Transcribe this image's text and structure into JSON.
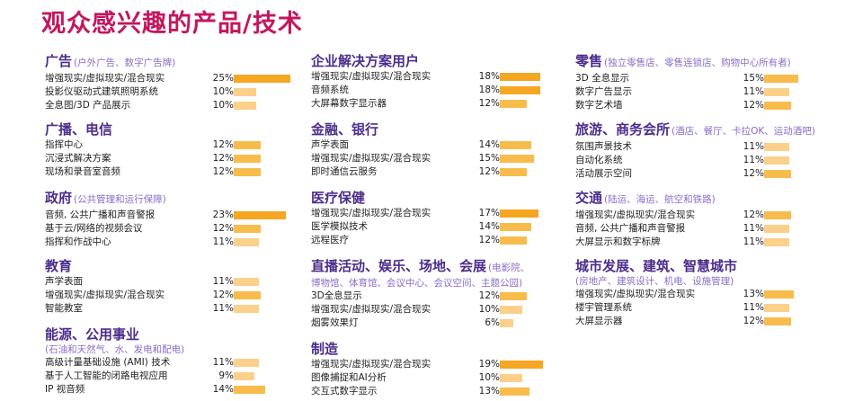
{
  "title": "观众感兴趣的产品/技术",
  "colors": {
    "title": "#c3175e",
    "section": "#4b2d8c",
    "subtitle": "#8a6cc8",
    "bar_high": "#f5a623",
    "bar_mid": "#f8bc4c",
    "bar_low": "#fad08a"
  },
  "chart_data": {
    "type": "bar",
    "orientation": "horizontal",
    "unit": "%",
    "columns": [
      [
        {
          "title": "广告",
          "subtitle": "(户外广告、数字广告牌)",
          "items": [
            {
              "label": "增强现实/虚拟现实/混合现实",
              "value": 25,
              "display": "25%"
            },
            {
              "label": "投影仪驱动式建筑照明系统",
              "value": 10,
              "display": "10%"
            },
            {
              "label": "全息图/3D 产品展示",
              "value": 10,
              "display": "10%"
            }
          ]
        },
        {
          "title": "广播、电信",
          "subtitle": "",
          "items": [
            {
              "label": "指挥中心",
              "value": 12,
              "display": "12%"
            },
            {
              "label": "沉浸式解决方案",
              "value": 12,
              "display": "12%"
            },
            {
              "label": "现场和录音室音频",
              "value": 12,
              "display": "12%"
            }
          ]
        },
        {
          "title": "政府",
          "subtitle": "(公共管理和运行保障)",
          "items": [
            {
              "label": "音频, 公共广播和声音警报",
              "value": 23,
              "display": "23%"
            },
            {
              "label": "基于云/网络的视频会议",
              "value": 12,
              "display": "12%"
            },
            {
              "label": "指挥和作战中心",
              "value": 11,
              "display": "11%"
            }
          ]
        },
        {
          "title": "教育",
          "subtitle": "",
          "items": [
            {
              "label": "声学表面",
              "value": 11,
              "display": "11%"
            },
            {
              "label": "增强现实/虚拟现实/混合现实",
              "value": 12,
              "display": "12%"
            },
            {
              "label": "智能教室",
              "value": 11,
              "display": "11%"
            }
          ]
        },
        {
          "title": "能源、公用事业",
          "subtitle_line": "(石油和天然气、水、发电和配电)",
          "items": [
            {
              "label": "高级计量基础设施 (AMI) 技术",
              "value": 11,
              "display": "11%"
            },
            {
              "label": "基于人工智能的闭路电视应用",
              "value": 9,
              "display": "9%"
            },
            {
              "label": "IP 视音频",
              "value": 14,
              "display": "14%"
            }
          ]
        }
      ],
      [
        {
          "title": "企业解决方案用户",
          "subtitle": "",
          "items": [
            {
              "label": "增强现实/虚拟现实/混合现实",
              "value": 18,
              "display": "18%"
            },
            {
              "label": "音频系统",
              "value": 18,
              "display": "18%"
            },
            {
              "label": "大屏幕数字显示器",
              "value": 12,
              "display": "12%"
            }
          ]
        },
        {
          "title": "金融、银行",
          "subtitle": "",
          "items": [
            {
              "label": "声学表面",
              "value": 14,
              "display": "14%"
            },
            {
              "label": "增强现实/虚拟现实/混合现实",
              "value": 15,
              "display": "15%"
            },
            {
              "label": "即时通信云服务",
              "value": 12,
              "display": "12%"
            }
          ]
        },
        {
          "title": "医疗保健",
          "subtitle": "",
          "items": [
            {
              "label": "增强现实/虚拟现实/混合现实",
              "value": 17,
              "display": "17%"
            },
            {
              "label": "医学模拟技术",
              "value": 14,
              "display": "14%"
            },
            {
              "label": "远程医疗",
              "value": 12,
              "display": "12%"
            }
          ]
        },
        {
          "title": "直播活动、娱乐、场地、会展",
          "subtitle": "(电影院、",
          "subtitle_line": "博物馆、体育馆、会议中心、会议空间、主题公园)",
          "items": [
            {
              "label": "3D全息显示",
              "value": 12,
              "display": "12%"
            },
            {
              "label": "增强现实/虚拟现实/混合现实",
              "value": 10,
              "display": "10%"
            },
            {
              "label": "烟雾效果灯",
              "value": 6,
              "display": "6%"
            }
          ]
        },
        {
          "title": "制造",
          "subtitle": "",
          "items": [
            {
              "label": "增强现实/虚拟现实/混合现实",
              "value": 19,
              "display": "19%"
            },
            {
              "label": "图像捕捉和AI分析",
              "value": 10,
              "display": "10%"
            },
            {
              "label": "交互式数字显示",
              "value": 13,
              "display": "13%"
            }
          ]
        }
      ],
      [
        {
          "title": "零售",
          "subtitle": "(独立零售店、零售连锁店、购物中心所有者)",
          "items": [
            {
              "label": "3D 全息显示",
              "value": 15,
              "display": "15%"
            },
            {
              "label": "数字广告显示",
              "value": 11,
              "display": "11%"
            },
            {
              "label": "数字艺术墙",
              "value": 12,
              "display": "12%"
            }
          ]
        },
        {
          "title": "旅游、商务会所",
          "subtitle": "(酒店、餐厅、卡拉OK、运动酒吧)",
          "items": [
            {
              "label": "氛围声景技术",
              "value": 11,
              "display": "11%"
            },
            {
              "label": "自动化系统",
              "value": 11,
              "display": "11%"
            },
            {
              "label": "活动展示空间",
              "value": 12,
              "display": "12%"
            }
          ]
        },
        {
          "title": "交通",
          "subtitle": "(陆运、海运、航空和铁路)",
          "items": [
            {
              "label": "增强现实/虚拟现实/混合现实",
              "value": 12,
              "display": "12%"
            },
            {
              "label": "音频, 公共广播和声音警报",
              "value": 11,
              "display": "11%"
            },
            {
              "label": "大屏显示和数字标牌",
              "value": 11,
              "display": "11%"
            }
          ]
        },
        {
          "title": "城市发展、建筑、智慧城市",
          "subtitle": "",
          "subtitle_line": "(房地产、建筑设计、机电、设施管理)",
          "items": [
            {
              "label": "增强现实/虚拟现实/混合现实",
              "value": 13,
              "display": "13%"
            },
            {
              "label": "楼宇管理系统",
              "value": 11,
              "display": "11%"
            },
            {
              "label": "大屏显示器",
              "value": 12,
              "display": "12%"
            }
          ]
        }
      ]
    ]
  }
}
